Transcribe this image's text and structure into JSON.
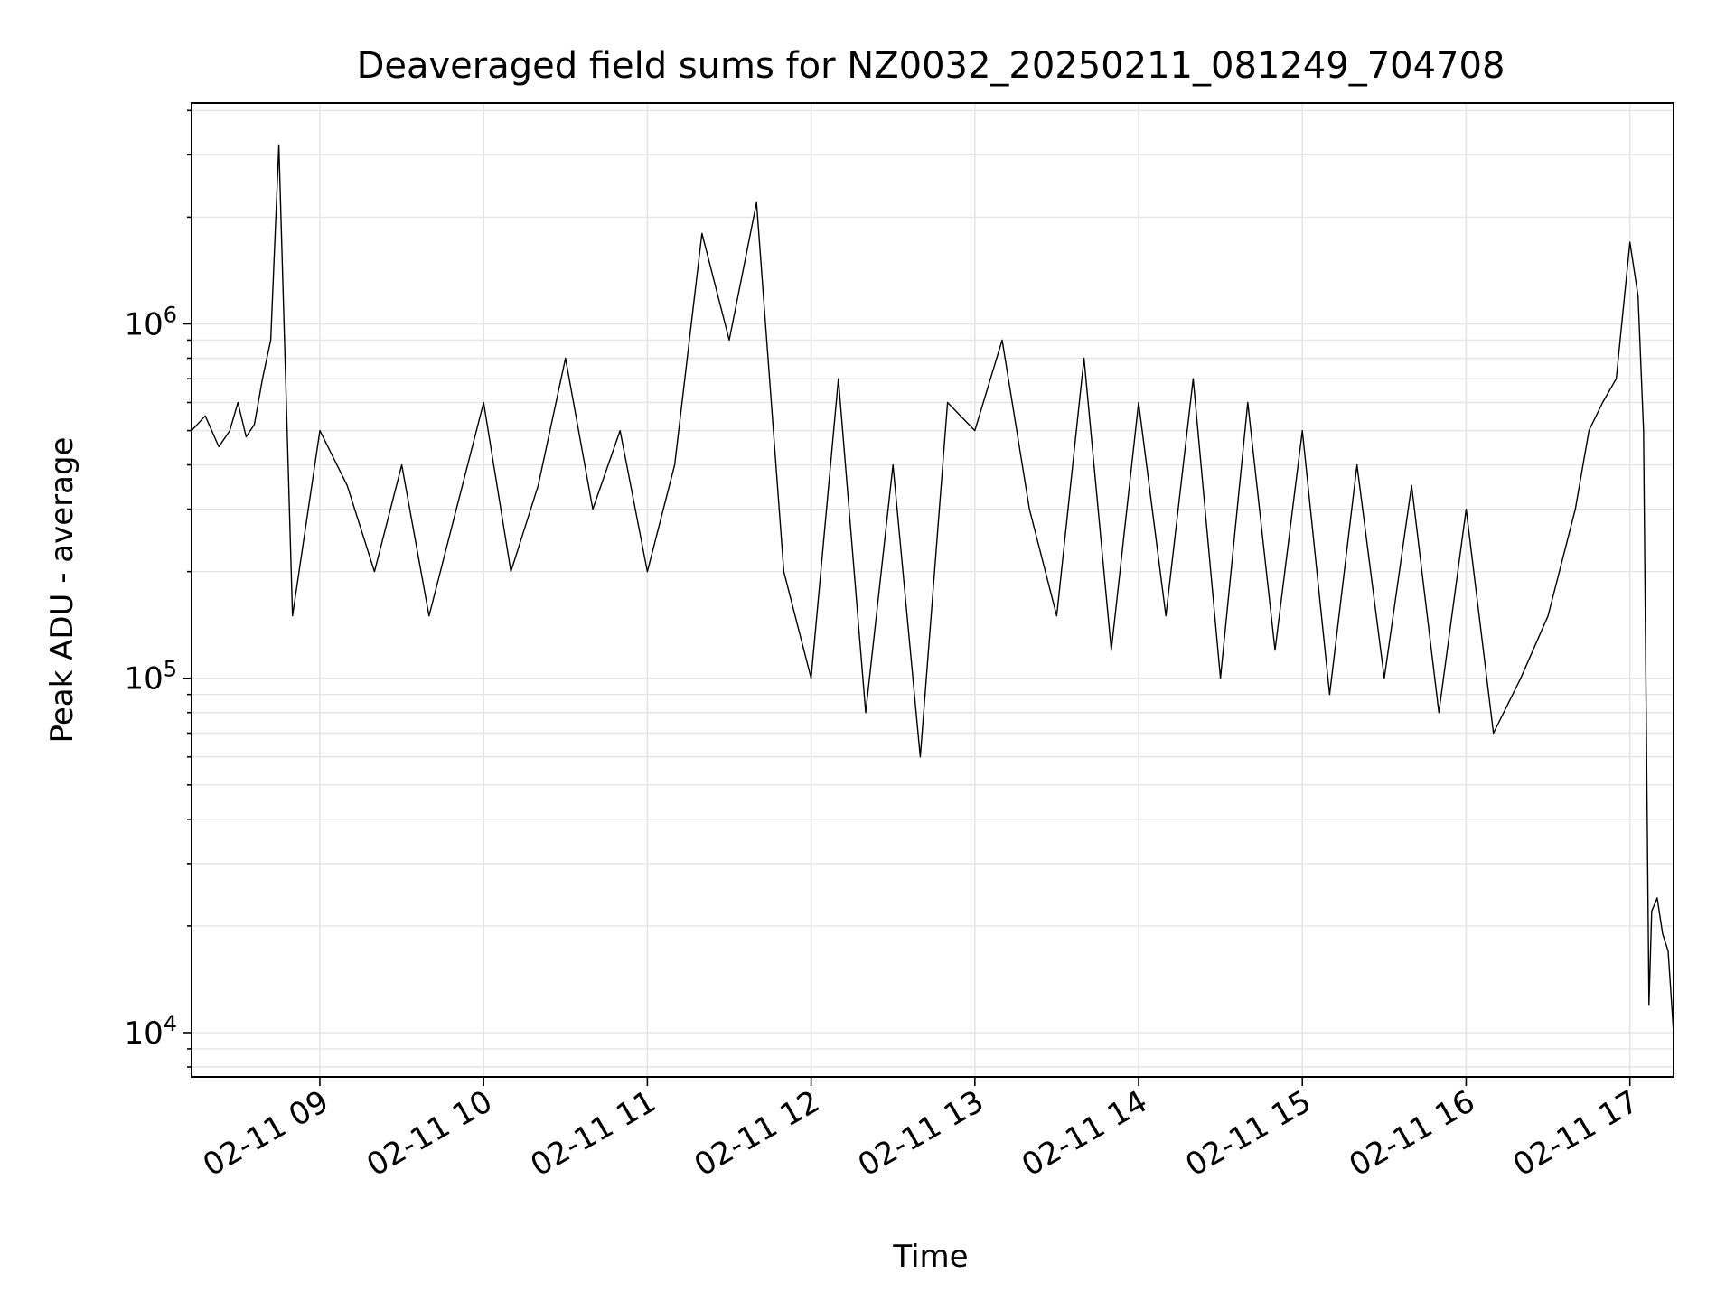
{
  "chart_data": {
    "type": "line",
    "title": "Deaveraged field sums for NZ0032_20250211_081249_704708",
    "xlabel": "Time",
    "ylabel": "Peak ADU - average",
    "yscale": "log",
    "ylim": [
      7500,
      4200000
    ],
    "xlim": [
      "2025-02-11 08:13",
      "2025-02-11 17:16"
    ],
    "grid": true,
    "legend": "none",
    "line_color": "#000000",
    "grid_color": "#e5e5e5",
    "x_ticks": [
      {
        "time": "2025-02-11 09:00",
        "label": "02-11 09"
      },
      {
        "time": "2025-02-11 10:00",
        "label": "02-11 10"
      },
      {
        "time": "2025-02-11 11:00",
        "label": "02-11 11"
      },
      {
        "time": "2025-02-11 12:00",
        "label": "02-11 12"
      },
      {
        "time": "2025-02-11 13:00",
        "label": "02-11 13"
      },
      {
        "time": "2025-02-11 14:00",
        "label": "02-11 14"
      },
      {
        "time": "2025-02-11 15:00",
        "label": "02-11 15"
      },
      {
        "time": "2025-02-11 16:00",
        "label": "02-11 16"
      },
      {
        "time": "2025-02-11 17:00",
        "label": "02-11 17"
      }
    ],
    "y_ticks": [
      {
        "value": 10000,
        "base": "10",
        "exp": "4"
      },
      {
        "value": 100000,
        "base": "10",
        "exp": "5"
      },
      {
        "value": 1000000,
        "base": "10",
        "exp": "6"
      }
    ],
    "series": [
      {
        "x": [
          "2025-02-11 08:13",
          "2025-02-11 08:18",
          "2025-02-11 08:23",
          "2025-02-11 08:27",
          "2025-02-11 08:30",
          "2025-02-11 08:33",
          "2025-02-11 08:36",
          "2025-02-11 08:39",
          "2025-02-11 08:42",
          "2025-02-11 08:45",
          "2025-02-11 08:50",
          "2025-02-11 09:00",
          "2025-02-11 09:10",
          "2025-02-11 09:20",
          "2025-02-11 09:30",
          "2025-02-11 09:40",
          "2025-02-11 09:50",
          "2025-02-11 10:00",
          "2025-02-11 10:10",
          "2025-02-11 10:20",
          "2025-02-11 10:30",
          "2025-02-11 10:40",
          "2025-02-11 10:50",
          "2025-02-11 11:00",
          "2025-02-11 11:10",
          "2025-02-11 11:20",
          "2025-02-11 11:30",
          "2025-02-11 11:40",
          "2025-02-11 11:50",
          "2025-02-11 12:00",
          "2025-02-11 12:10",
          "2025-02-11 12:20",
          "2025-02-11 12:30",
          "2025-02-11 12:40",
          "2025-02-11 12:50",
          "2025-02-11 13:00",
          "2025-02-11 13:10",
          "2025-02-11 13:20",
          "2025-02-11 13:30",
          "2025-02-11 13:40",
          "2025-02-11 13:50",
          "2025-02-11 14:00",
          "2025-02-11 14:10",
          "2025-02-11 14:20",
          "2025-02-11 14:30",
          "2025-02-11 14:40",
          "2025-02-11 14:50",
          "2025-02-11 15:00",
          "2025-02-11 15:10",
          "2025-02-11 15:20",
          "2025-02-11 15:30",
          "2025-02-11 15:40",
          "2025-02-11 15:50",
          "2025-02-11 16:00",
          "2025-02-11 16:10",
          "2025-02-11 16:20",
          "2025-02-11 16:30",
          "2025-02-11 16:40",
          "2025-02-11 16:45",
          "2025-02-11 16:50",
          "2025-02-11 16:55",
          "2025-02-11 17:00",
          "2025-02-11 17:03",
          "2025-02-11 17:05",
          "2025-02-11 17:07",
          "2025-02-11 17:08",
          "2025-02-11 17:10",
          "2025-02-11 17:12",
          "2025-02-11 17:14",
          "2025-02-11 17:16"
        ],
        "y": [
          500000,
          550000,
          450000,
          500000,
          600000,
          480000,
          520000,
          700000,
          900000,
          3200000,
          150000,
          500000,
          350000,
          200000,
          400000,
          150000,
          300000,
          600000,
          200000,
          350000,
          800000,
          300000,
          500000,
          200000,
          400000,
          1800000,
          900000,
          2200000,
          200000,
          100000,
          700000,
          80000,
          400000,
          60000,
          600000,
          500000,
          900000,
          300000,
          150000,
          800000,
          120000,
          600000,
          150000,
          700000,
          100000,
          600000,
          120000,
          500000,
          90000,
          400000,
          100000,
          350000,
          80000,
          300000,
          70000,
          100000,
          150000,
          300000,
          500000,
          600000,
          700000,
          1700000,
          1200000,
          500000,
          12000,
          22000,
          24000,
          19000,
          17000,
          10000
        ]
      }
    ]
  }
}
